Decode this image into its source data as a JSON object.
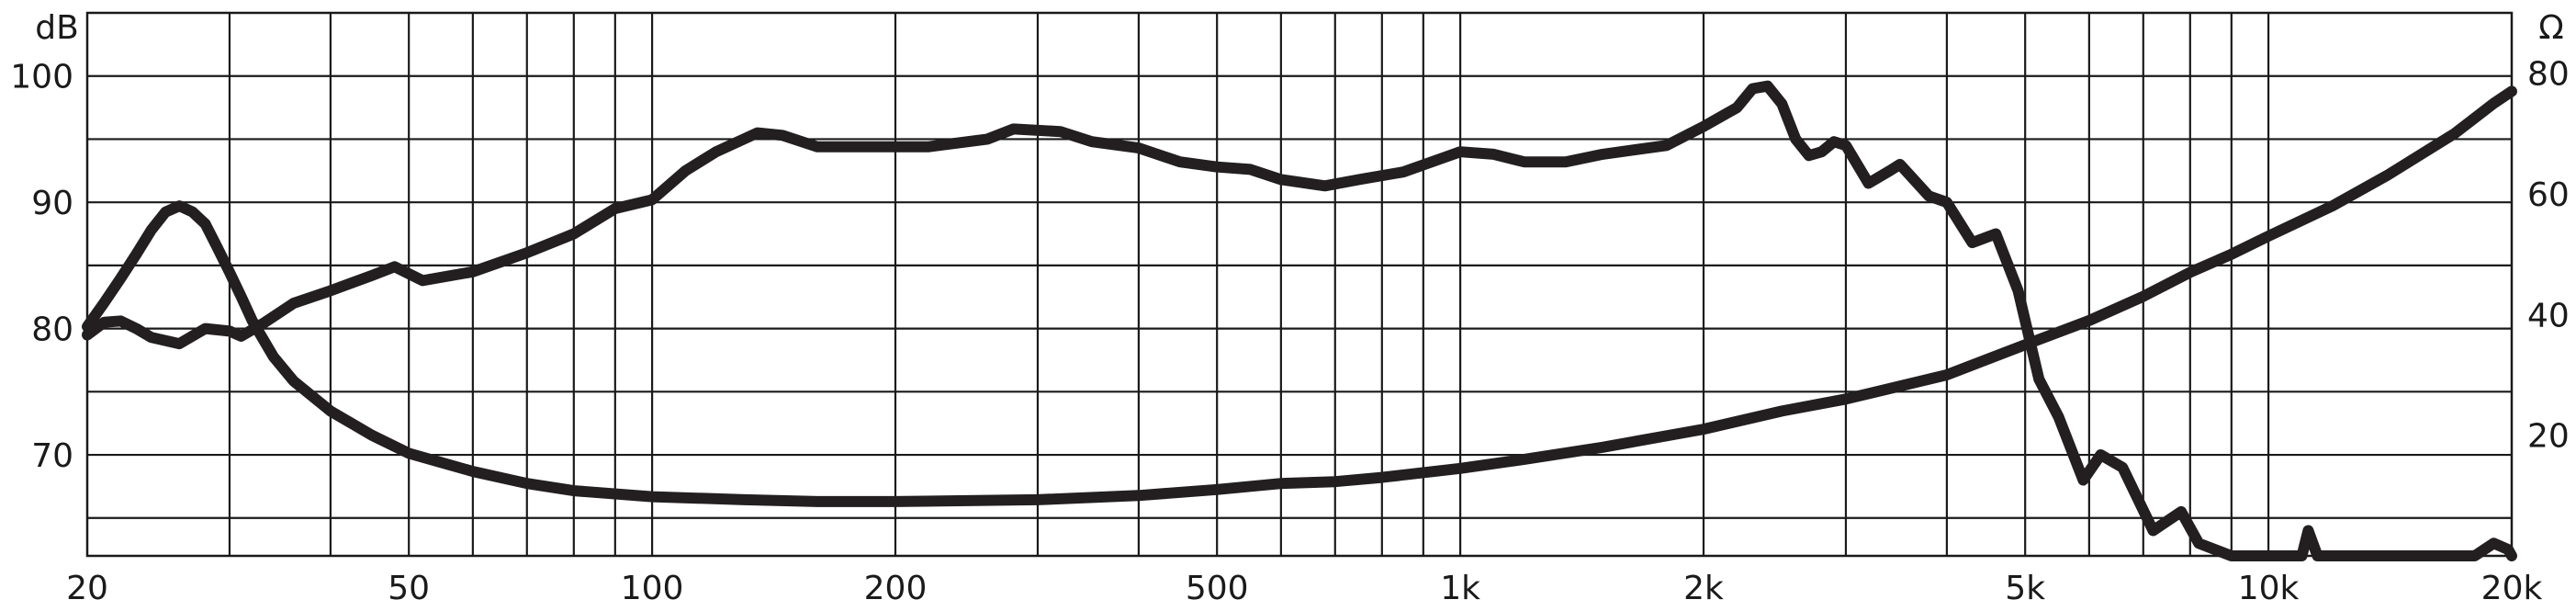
{
  "chart_data": {
    "type": "line",
    "x_scale": "log",
    "xlim": [
      20,
      20000
    ],
    "ylim_left": [
      62,
      105
    ],
    "ylim_right": [
      0,
      90
    ],
    "left_unit": "dB",
    "right_unit": "Ω",
    "x_ticks": [
      {
        "value": 20,
        "label": "20"
      },
      {
        "value": 50,
        "label": "50"
      },
      {
        "value": 100,
        "label": "100"
      },
      {
        "value": 200,
        "label": "200"
      },
      {
        "value": 500,
        "label": "500"
      },
      {
        "value": 1000,
        "label": "1k"
      },
      {
        "value": 2000,
        "label": "2k"
      },
      {
        "value": 5000,
        "label": "5k"
      },
      {
        "value": 10000,
        "label": "10k"
      },
      {
        "value": 20000,
        "label": "20k"
      }
    ],
    "y_ticks_left": [
      {
        "value": 70,
        "label": "70"
      },
      {
        "value": 80,
        "label": "80"
      },
      {
        "value": 90,
        "label": "90"
      },
      {
        "value": 100,
        "label": "100"
      }
    ],
    "y_ticks_right": [
      {
        "value": 20,
        "label": "20"
      },
      {
        "value": 40,
        "label": "40"
      },
      {
        "value": 60,
        "label": "60"
      },
      {
        "value": 80,
        "label": "80"
      }
    ],
    "series": [
      {
        "axis": "left",
        "points": [
          [
            20,
            79.5
          ],
          [
            21,
            80.5
          ],
          [
            22,
            80.6
          ],
          [
            23,
            80
          ],
          [
            24,
            79.3
          ],
          [
            26,
            78.8
          ],
          [
            28,
            80
          ],
          [
            30,
            79.8
          ],
          [
            31,
            79.4
          ],
          [
            33,
            80.4
          ],
          [
            36,
            82
          ],
          [
            40,
            83
          ],
          [
            45,
            84.2
          ],
          [
            48,
            84.9
          ],
          [
            52,
            83.8
          ],
          [
            60,
            84.5
          ],
          [
            70,
            86
          ],
          [
            80,
            87.5
          ],
          [
            90,
            89.5
          ],
          [
            100,
            90.2
          ],
          [
            110,
            92.5
          ],
          [
            120,
            94
          ],
          [
            135,
            95.5
          ],
          [
            145,
            95.3
          ],
          [
            160,
            94.4
          ],
          [
            180,
            94.4
          ],
          [
            220,
            94.4
          ],
          [
            260,
            95
          ],
          [
            280,
            95.8
          ],
          [
            320,
            95.6
          ],
          [
            350,
            94.8
          ],
          [
            400,
            94.3
          ],
          [
            450,
            93.2
          ],
          [
            500,
            92.8
          ],
          [
            550,
            92.6
          ],
          [
            600,
            91.8
          ],
          [
            680,
            91.3
          ],
          [
            750,
            91.8
          ],
          [
            850,
            92.4
          ],
          [
            950,
            93.5
          ],
          [
            1000,
            94
          ],
          [
            1100,
            93.8
          ],
          [
            1200,
            93.2
          ],
          [
            1350,
            93.2
          ],
          [
            1500,
            93.8
          ],
          [
            1800,
            94.5
          ],
          [
            2000,
            96
          ],
          [
            2200,
            97.5
          ],
          [
            2300,
            99
          ],
          [
            2400,
            99.2
          ],
          [
            2500,
            97.8
          ],
          [
            2600,
            95
          ],
          [
            2700,
            93.7
          ],
          [
            2800,
            94
          ],
          [
            2900,
            94.8
          ],
          [
            3000,
            94.5
          ],
          [
            3200,
            91.5
          ],
          [
            3400,
            92.5
          ],
          [
            3500,
            93
          ],
          [
            3800,
            90.5
          ],
          [
            4000,
            90
          ],
          [
            4300,
            86.8
          ],
          [
            4600,
            87.5
          ],
          [
            4900,
            83
          ],
          [
            5200,
            76
          ],
          [
            5500,
            73
          ],
          [
            5900,
            68
          ],
          [
            6200,
            70
          ],
          [
            6600,
            69
          ],
          [
            7200,
            64
          ],
          [
            7800,
            65.5
          ],
          [
            8200,
            63
          ],
          [
            9000,
            62
          ],
          [
            11000,
            62
          ],
          [
            11200,
            64
          ],
          [
            11500,
            62
          ],
          [
            18000,
            62
          ],
          [
            19000,
            63
          ],
          [
            19800,
            62.5
          ],
          [
            20000,
            62
          ]
        ]
      },
      {
        "axis": "right",
        "points": [
          [
            20,
            38
          ],
          [
            21,
            42
          ],
          [
            22,
            46
          ],
          [
            23,
            50
          ],
          [
            24,
            54
          ],
          [
            25,
            57
          ],
          [
            26,
            58
          ],
          [
            27,
            57
          ],
          [
            28,
            55
          ],
          [
            29,
            51
          ],
          [
            30,
            47
          ],
          [
            31,
            43
          ],
          [
            32,
            39
          ],
          [
            34,
            33
          ],
          [
            36,
            29
          ],
          [
            40,
            24
          ],
          [
            45,
            20
          ],
          [
            50,
            17
          ],
          [
            60,
            14
          ],
          [
            70,
            12
          ],
          [
            80,
            10.8
          ],
          [
            100,
            9.8
          ],
          [
            130,
            9.3
          ],
          [
            160,
            9
          ],
          [
            200,
            9
          ],
          [
            300,
            9.3
          ],
          [
            400,
            10
          ],
          [
            500,
            11
          ],
          [
            600,
            12
          ],
          [
            700,
            12.3
          ],
          [
            800,
            13
          ],
          [
            1000,
            14.5
          ],
          [
            1200,
            16
          ],
          [
            1500,
            18
          ],
          [
            2000,
            21
          ],
          [
            2500,
            24
          ],
          [
            3000,
            26
          ],
          [
            4000,
            30
          ],
          [
            5000,
            35
          ],
          [
            6000,
            39
          ],
          [
            7000,
            43
          ],
          [
            8000,
            47
          ],
          [
            9000,
            50
          ],
          [
            10000,
            53
          ],
          [
            12000,
            58
          ],
          [
            14000,
            63
          ],
          [
            17000,
            70
          ],
          [
            19000,
            75
          ],
          [
            20000,
            77
          ]
        ]
      }
    ]
  }
}
